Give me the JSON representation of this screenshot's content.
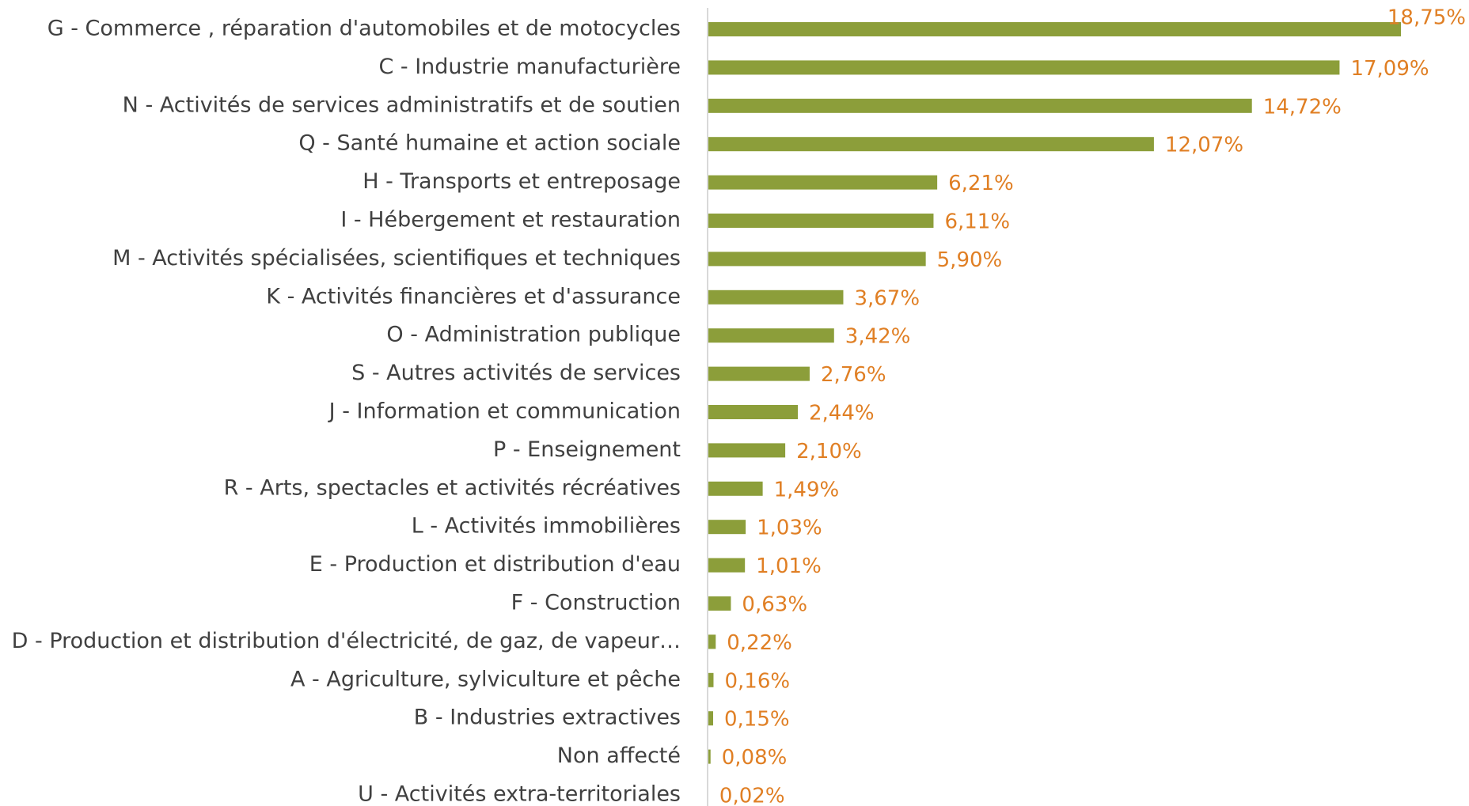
{
  "chart_data": {
    "type": "bar",
    "orientation": "horizontal",
    "color": "#8c9e3a",
    "label_color": "#e07f24",
    "categories": [
      "G - Commerce , réparation d'automobiles et de motocycles",
      "C - Industrie manufacturière",
      "N - Activités de services administratifs et de soutien",
      "Q - Santé humaine et action sociale",
      "H - Transports et entreposage",
      "I - Hébergement et restauration",
      "M - Activités spécialisées, scientifiques et techniques",
      "K - Activités financières et d'assurance",
      "O - Administration publique",
      "S - Autres activités de services",
      "J - Information et communication",
      "P - Enseignement",
      "R - Arts, spectacles et activités récréatives",
      "L - Activités immobilières",
      "E - Production et distribution d'eau ",
      "F - Construction",
      "D - Production et distribution d'électricité, de gaz, de vapeur…",
      "A - Agriculture, sylviculture et pêche",
      "B - Industries extractives",
      "Non affecté",
      "U - Activités extra-territoriales"
    ],
    "values": [
      18.75,
      17.09,
      14.72,
      12.07,
      6.21,
      6.11,
      5.9,
      3.67,
      3.42,
      2.76,
      2.44,
      2.1,
      1.49,
      1.03,
      1.01,
      0.63,
      0.22,
      0.16,
      0.15,
      0.08,
      0.02
    ],
    "value_labels": [
      "18,75%",
      "17,09%",
      "14,72%",
      "12,07%",
      "6,21%",
      "6,11%",
      "5,90%",
      "3,67%",
      "3,42%",
      "2,76%",
      "2,44%",
      "2,10%",
      "1,49%",
      "1,03%",
      "1,01%",
      "0,63%",
      "0,22%",
      "0,16%",
      "0,15%",
      "0,08%",
      "0,02%"
    ]
  }
}
